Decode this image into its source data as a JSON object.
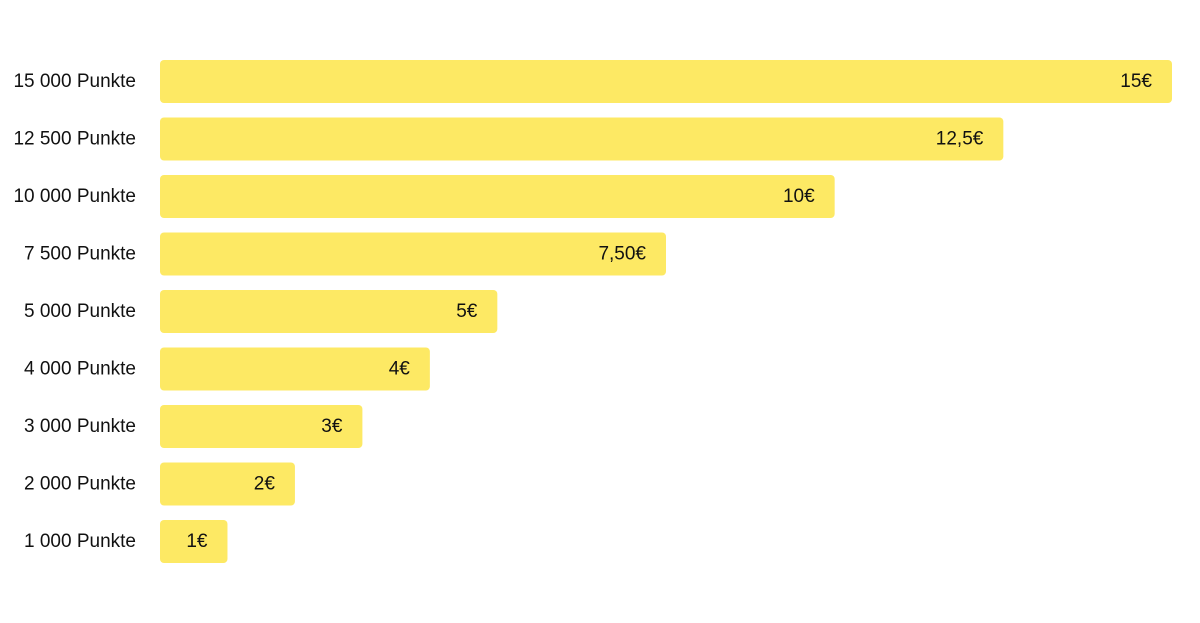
{
  "chart_data": {
    "type": "bar",
    "orientation": "horizontal",
    "categories": [
      "15 000 Punkte",
      "12 500 Punkte",
      "10 000 Punkte",
      "7 500 Punkte",
      "5 000 Punkte",
      "4 000 Punkte",
      "3 000 Punkte",
      "2 000 Punkte",
      "1 000 Punkte"
    ],
    "values": [
      15,
      12.5,
      10,
      7.5,
      5,
      4,
      3,
      2,
      1
    ],
    "value_labels": [
      "15€",
      "12,5€",
      "10€",
      "7,50€",
      "5€",
      "4€",
      "3€",
      "2€",
      "1€"
    ],
    "xlim": [
      0,
      15
    ],
    "grid": false,
    "legend": "none",
    "colors": {
      "bar": "#FDE964",
      "text": "#111111",
      "background": "#FFFFFF"
    }
  }
}
